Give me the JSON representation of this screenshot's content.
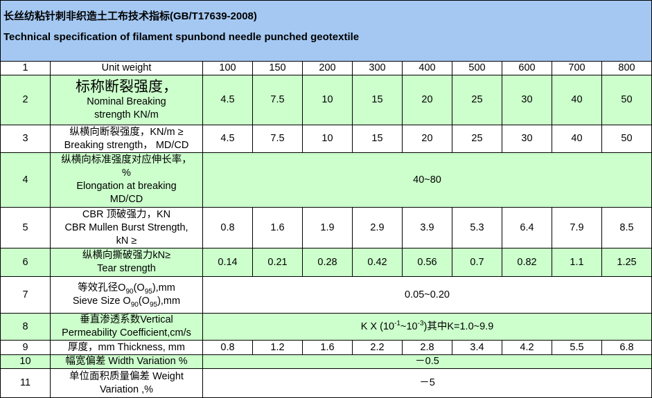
{
  "header": {
    "title_cn": "长丝纺粘针刺非织造土工布技术指标(GB/T17639-2008)",
    "title_en": "Technical specification of filament spunbond needle punched geotextile"
  },
  "table": {
    "rows": [
      {
        "no": "1",
        "name": [
          "Unit weight"
        ],
        "values": [
          "100",
          "150",
          "200",
          "300",
          "400",
          "500",
          "600",
          "700",
          "800"
        ]
      },
      {
        "no": "2",
        "name": [
          "标称断裂强度，",
          "Nominal Breaking",
          "strength KN/m"
        ],
        "values": [
          "4.5",
          "7.5",
          "10",
          "15",
          "20",
          "25",
          "30",
          "40",
          "50"
        ]
      },
      {
        "no": "3",
        "name": [
          "纵横向断裂强度，KN/m ≥",
          "Breaking strength，  MD/CD"
        ],
        "values": [
          "4.5",
          "7.5",
          "10",
          "15",
          "20",
          "25",
          "30",
          "40",
          "50"
        ]
      },
      {
        "no": "4",
        "name": [
          "纵横向标准强度对应伸长率，",
          "%",
          "Elongation at breaking",
          "MD/CD"
        ],
        "span": [
          "40~80"
        ]
      },
      {
        "no": "5",
        "name": [
          "CBR 顶破强力，KN",
          "CBR Mullen Burst Strength,",
          "kN ≥"
        ],
        "values": [
          "0.8",
          "1.6",
          "1.9",
          "2.9",
          "3.9",
          "5.3",
          "6.4",
          "7.9",
          "8.5"
        ]
      },
      {
        "no": "6",
        "name": [
          "纵横向撕破强力kN≥",
          "Tear strength"
        ],
        "values": [
          "0.14",
          "0.21",
          "0.28",
          "0.42",
          "0.56",
          "0.7",
          "0.82",
          "1.1",
          "1.25"
        ]
      },
      {
        "no": "7",
        "name": [
          [
            "等效孔径O",
            {
              "sub": "90"
            },
            "(O",
            {
              "sub": "95"
            },
            "),mm"
          ],
          [
            "Sieve Size O",
            {
              "sub": "90"
            },
            "(O",
            {
              "sub": "95"
            },
            "),mm"
          ]
        ],
        "span": [
          "0.05~0.20"
        ]
      },
      {
        "no": "8",
        "name": [
          "垂直渗透系数Vertical",
          "Permeability Coefficient,cm/s"
        ],
        "span": [
          [
            "K X (10",
            {
              "sup": "-1"
            },
            "~10",
            {
              "sup": "-3"
            },
            ")其中K=1.0~9.9"
          ]
        ]
      },
      {
        "no": "9",
        "name": [
          "厚度，mm Thickness, mm"
        ],
        "values": [
          "0.8",
          "1.2",
          "1.6",
          "2.2",
          "2.8",
          "3.4",
          "4.2",
          "5.5",
          "6.8"
        ]
      },
      {
        "no": "10",
        "name": [
          "幅宽偏差 Width Variation %"
        ],
        "span": [
          "－0.5"
        ]
      },
      {
        "no": "11",
        "name": [
          "单位面积质量偏差 Weight",
          "Variation ,%"
        ],
        "span": [
          "－5"
        ]
      }
    ]
  }
}
